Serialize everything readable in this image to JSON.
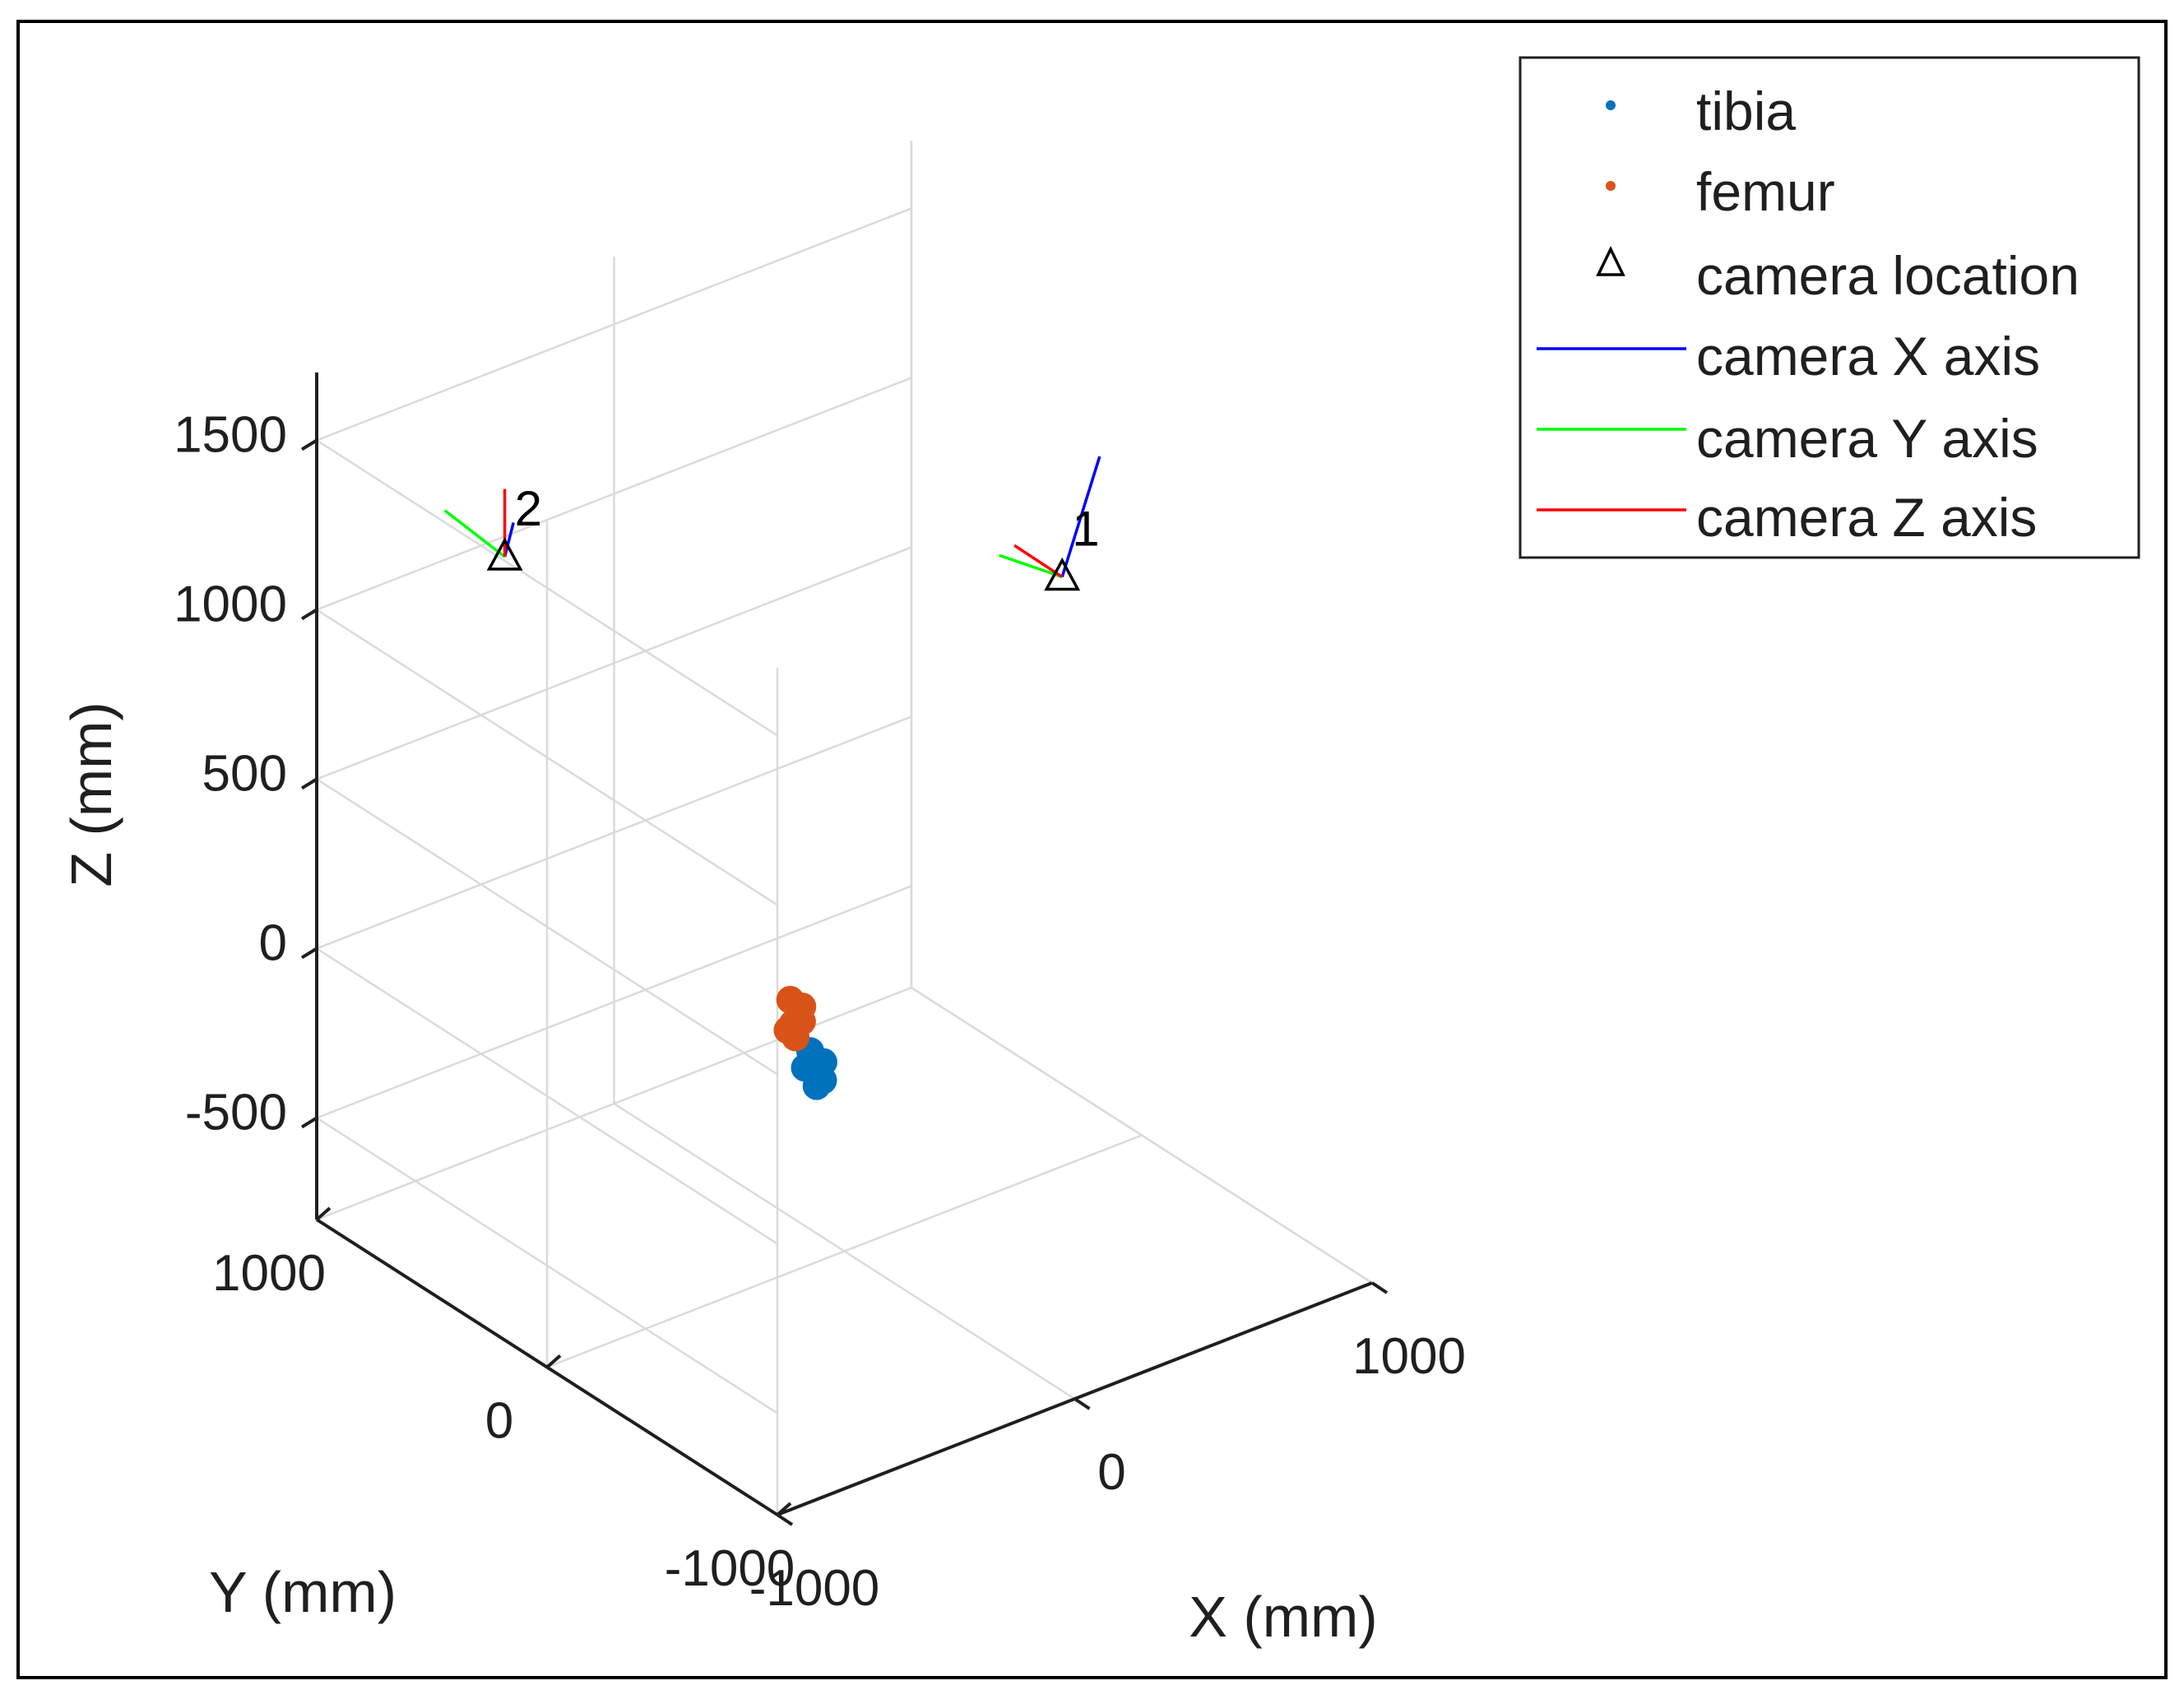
{
  "chart_data": {
    "type": "scatter3d",
    "title": "",
    "xlabel": "X (mm)",
    "ylabel": "Y (mm)",
    "zlabel": "Z (mm)",
    "xlim": [
      -1000,
      1000
    ],
    "ylim": [
      -1000,
      1000
    ],
    "zlim": [
      -800,
      1700
    ],
    "x_ticks": [
      -1000,
      0,
      1000
    ],
    "y_ticks": [
      -1000,
      0,
      1000
    ],
    "z_ticks": [
      -500,
      0,
      500,
      1000,
      1500
    ],
    "x_tick_labels": [
      "-1000",
      "0",
      "1000"
    ],
    "y_tick_labels": [
      "-1000",
      "0",
      "1000"
    ],
    "z_tick_labels": [
      "-500",
      "0",
      "500",
      "1000",
      "1500"
    ],
    "grid": true,
    "legend_position": "top-right",
    "legend": [
      {
        "label": "tibia",
        "type": "marker",
        "color": "#0072BD"
      },
      {
        "label": "femur",
        "type": "marker",
        "color": "#D95319"
      },
      {
        "label": "camera location",
        "type": "triangle",
        "color": "#000000"
      },
      {
        "label": "camera X axis",
        "type": "line",
        "color": "#0000FF"
      },
      {
        "label": "camera Y axis",
        "type": "line",
        "color": "#00FF00"
      },
      {
        "label": "camera Z axis",
        "type": "line",
        "color": "#FF0000"
      }
    ],
    "series": [
      {
        "name": "tibia",
        "color": "#0072BD",
        "points": [
          [
            -110,
            -10,
            -190
          ],
          [
            -100,
            -20,
            -230
          ],
          [
            -120,
            -5,
            -210
          ],
          [
            -95,
            -30,
            -250
          ],
          [
            -115,
            0,
            -170
          ],
          [
            -105,
            -15,
            -270
          ],
          [
            -90,
            -25,
            -200
          ],
          [
            -125,
            10,
            -220
          ]
        ]
      },
      {
        "name": "femur",
        "color": "#D95319",
        "points": [
          [
            -140,
            20,
            -60
          ],
          [
            -150,
            30,
            -90
          ],
          [
            -130,
            15,
            -40
          ],
          [
            -160,
            40,
            -110
          ],
          [
            -145,
            25,
            -130
          ],
          [
            -135,
            10,
            -80
          ],
          [
            -155,
            35,
            -20
          ]
        ]
      }
    ],
    "cameras": [
      {
        "label": "1",
        "position": [
          500,
          -300,
          1150
        ],
        "x_axis": [
          250,
          160,
          200
        ],
        "y_axis": [
          -150,
          80,
          80
        ],
        "z_axis": [
          -130,
          40,
          120
        ]
      },
      {
        "label": "2",
        "position": [
          -600,
          700,
          1150
        ],
        "x_axis": [
          130,
          130,
          0
        ],
        "y_axis": [
          -140,
          80,
          150
        ],
        "z_axis": [
          0,
          0,
          200
        ]
      }
    ],
    "axis_colors": {
      "x": "#0000FF",
      "y": "#00FF00",
      "z": "#FF0000"
    }
  }
}
